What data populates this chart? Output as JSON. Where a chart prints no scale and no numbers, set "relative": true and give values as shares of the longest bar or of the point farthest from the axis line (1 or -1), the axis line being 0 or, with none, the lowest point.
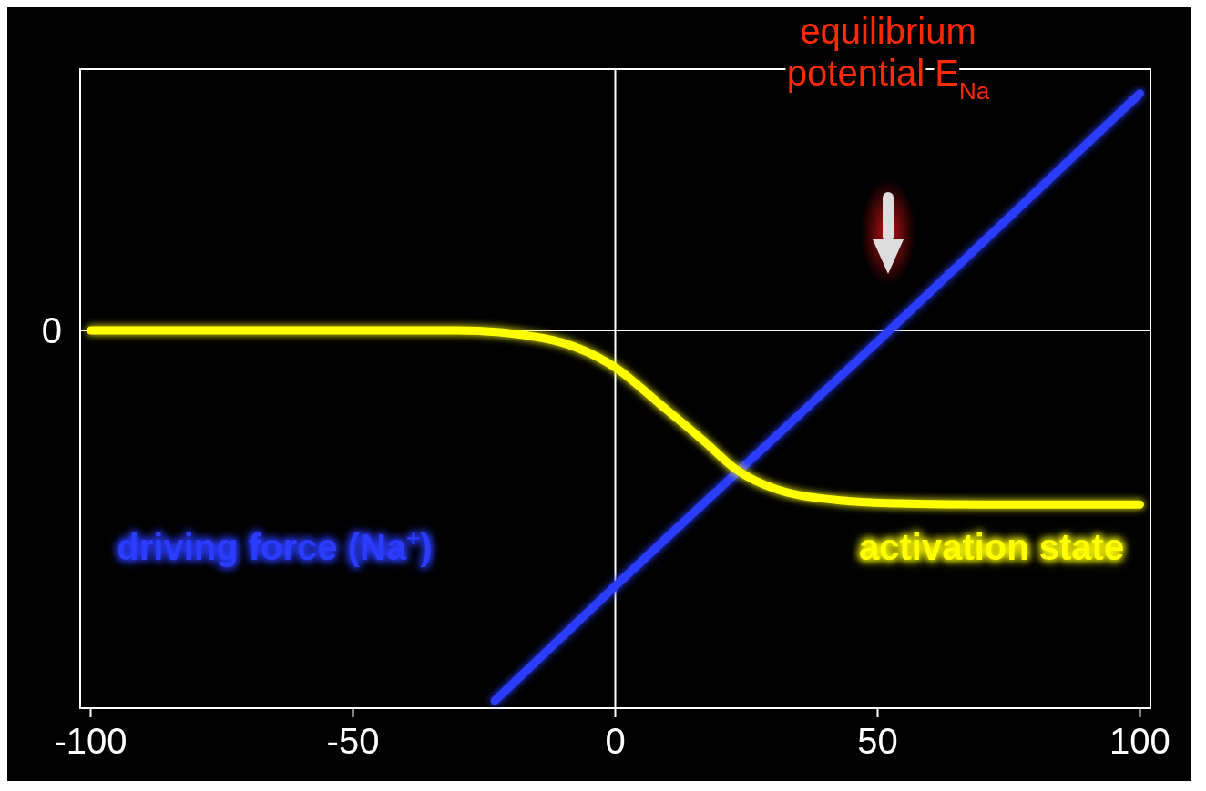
{
  "chart_data": {
    "type": "line",
    "relative": true,
    "xlim": [
      -102,
      102
    ],
    "xticks": [
      -100,
      -50,
      0,
      50,
      100
    ],
    "series": [
      {
        "name": "driving force (Na$^{+}$)",
        "color": "#2a3cff",
        "x": [
          -23,
          0,
          50,
          100
        ],
        "values": [
          -1.0,
          -0.69,
          -0.03,
          0.64
        ]
      },
      {
        "name": "activation state",
        "color": "#ffff00",
        "x": [
          -100,
          -60,
          -30,
          -14,
          0,
          8.6,
          17,
          23,
          31,
          44,
          54,
          70,
          100
        ],
        "values": [
          0,
          0,
          0,
          -0.02,
          -0.1,
          -0.2,
          -0.3,
          -0.375,
          -0.43,
          -0.46,
          -0.467,
          -0.47,
          -0.47
        ]
      }
    ],
    "ref_lines": [
      {
        "axis": "x",
        "value": 0,
        "color": "#ffffff"
      },
      {
        "axis": "y",
        "value": 0,
        "label": "0",
        "color": "#ffffff"
      }
    ],
    "annotations": [
      "equilibrium potential E$_{Na}$"
    ]
  }
}
